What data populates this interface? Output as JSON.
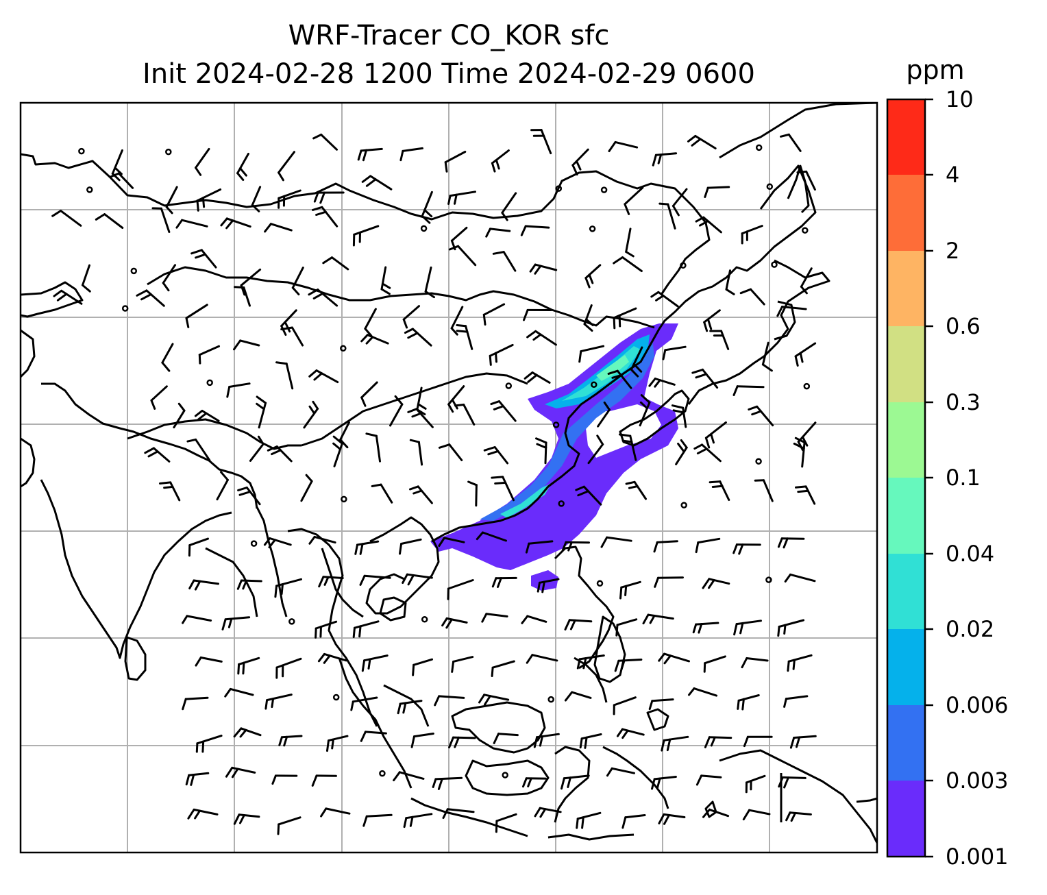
{
  "title": {
    "line1": "WRF-Tracer CO_KOR sfc",
    "line2": "Init 2024-02-28 1200 Time 2024-02-29 0600"
  },
  "colorbar": {
    "unit": "ppm",
    "levels": [
      "0.001",
      "0.003",
      "0.006",
      "0.02",
      "0.04",
      "0.1",
      "0.3",
      "0.6",
      "2",
      "4",
      "10"
    ],
    "colors": [
      "#6a2cfb",
      "#3371f2",
      "#05b1eb",
      "#30e0d5",
      "#66f8bd",
      "#9cf993",
      "#d1e083",
      "#feb463",
      "#fe6d38",
      "#fe2a18"
    ]
  },
  "map": {
    "region": "East and Southeast Asia",
    "gridlines": true,
    "wind_barbs": true,
    "field": "CO_KOR surface tracer concentration"
  }
}
